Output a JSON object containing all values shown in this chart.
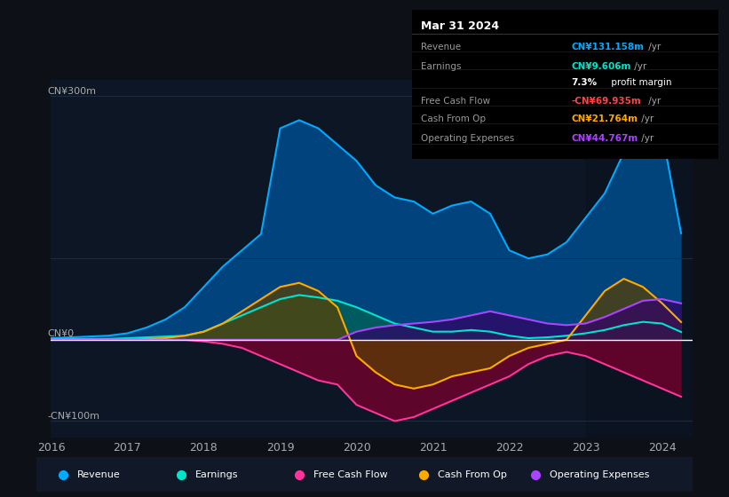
{
  "bg_color": "#0d1117",
  "plot_bg_color": "#0d1624",
  "grid_color": "#1e2d3d",
  "y_label_300": "CN¥300m",
  "y_label_0": "CN¥0",
  "y_label_neg100": "-CN¥100m",
  "x_ticks": [
    2016,
    2017,
    2018,
    2019,
    2020,
    2021,
    2022,
    2023,
    2024
  ],
  "ylim": [
    -120,
    320
  ],
  "series": {
    "Revenue": {
      "color": "#00aaff",
      "fill_color": "#004c8c",
      "fill_alpha": 0.85
    },
    "Earnings": {
      "color": "#00e5cc",
      "fill_color": "#006655",
      "fill_alpha": 0.7
    },
    "Free Cash Flow": {
      "color": "#ff3399",
      "fill_color": "#7a0030",
      "fill_alpha": 0.75
    },
    "Cash From Op": {
      "color": "#ffaa00",
      "fill_color": "#5c4000",
      "fill_alpha": 0.7
    },
    "Operating Expenses": {
      "color": "#aa44ff",
      "fill_color": "#330066",
      "fill_alpha": 0.7
    }
  },
  "revenue_x": [
    2016.0,
    2016.25,
    2016.5,
    2016.75,
    2017.0,
    2017.25,
    2017.5,
    2017.75,
    2018.0,
    2018.25,
    2018.5,
    2018.75,
    2019.0,
    2019.25,
    2019.5,
    2019.75,
    2020.0,
    2020.25,
    2020.5,
    2020.75,
    2021.0,
    2021.25,
    2021.5,
    2021.75,
    2022.0,
    2022.25,
    2022.5,
    2022.75,
    2023.0,
    2023.25,
    2023.5,
    2023.75,
    2024.0,
    2024.25
  ],
  "revenue_y": [
    2,
    3,
    4,
    5,
    8,
    15,
    25,
    40,
    65,
    90,
    110,
    130,
    260,
    270,
    260,
    240,
    220,
    190,
    175,
    170,
    155,
    165,
    170,
    155,
    110,
    100,
    105,
    120,
    150,
    180,
    230,
    265,
    255,
    131
  ],
  "earnings_x": [
    2016.0,
    2016.25,
    2016.5,
    2016.75,
    2017.0,
    2017.25,
    2017.5,
    2017.75,
    2018.0,
    2018.25,
    2018.5,
    2018.75,
    2019.0,
    2019.25,
    2019.5,
    2019.75,
    2020.0,
    2020.25,
    2020.5,
    2020.75,
    2021.0,
    2021.25,
    2021.5,
    2021.75,
    2022.0,
    2022.25,
    2022.5,
    2022.75,
    2023.0,
    2023.25,
    2023.5,
    2023.75,
    2024.0,
    2024.25
  ],
  "earnings_y": [
    1,
    1,
    1,
    1,
    2,
    3,
    4,
    5,
    10,
    20,
    30,
    40,
    50,
    55,
    52,
    48,
    40,
    30,
    20,
    15,
    10,
    10,
    12,
    10,
    5,
    2,
    3,
    5,
    8,
    12,
    18,
    22,
    20,
    9.6
  ],
  "cashflow_x": [
    2016.0,
    2016.25,
    2016.5,
    2016.75,
    2017.0,
    2017.25,
    2017.5,
    2017.75,
    2018.0,
    2018.25,
    2018.5,
    2018.75,
    2019.0,
    2019.25,
    2019.5,
    2019.75,
    2020.0,
    2020.25,
    2020.5,
    2020.75,
    2021.0,
    2021.25,
    2021.5,
    2021.75,
    2022.0,
    2022.25,
    2022.5,
    2022.75,
    2023.0,
    2023.25,
    2023.5,
    2023.75,
    2024.0,
    2024.25
  ],
  "cashflow_y": [
    0,
    0,
    0,
    0,
    0,
    0,
    0,
    0,
    -2,
    -5,
    -10,
    -20,
    -30,
    -40,
    -50,
    -55,
    -80,
    -90,
    -100,
    -95,
    -85,
    -75,
    -65,
    -55,
    -45,
    -30,
    -20,
    -15,
    -20,
    -30,
    -40,
    -50,
    -60,
    -70
  ],
  "cashop_x": [
    2016.0,
    2016.25,
    2016.5,
    2016.75,
    2017.0,
    2017.25,
    2017.5,
    2017.75,
    2018.0,
    2018.25,
    2018.5,
    2018.75,
    2019.0,
    2019.25,
    2019.5,
    2019.75,
    2020.0,
    2020.25,
    2020.5,
    2020.75,
    2021.0,
    2021.25,
    2021.5,
    2021.75,
    2022.0,
    2022.25,
    2022.5,
    2022.75,
    2023.0,
    2023.25,
    2023.5,
    2023.75,
    2024.0,
    2024.25
  ],
  "cashop_y": [
    0,
    0,
    0,
    0,
    0,
    1,
    2,
    5,
    10,
    20,
    35,
    50,
    65,
    70,
    60,
    40,
    -20,
    -40,
    -55,
    -60,
    -55,
    -45,
    -40,
    -35,
    -20,
    -10,
    -5,
    0,
    30,
    60,
    75,
    65,
    45,
    21.8
  ],
  "opex_x": [
    2016.0,
    2016.25,
    2016.5,
    2016.75,
    2017.0,
    2017.25,
    2017.5,
    2017.75,
    2018.0,
    2018.25,
    2018.5,
    2018.75,
    2019.0,
    2019.25,
    2019.5,
    2019.75,
    2020.0,
    2020.25,
    2020.5,
    2020.75,
    2021.0,
    2021.25,
    2021.5,
    2021.75,
    2022.0,
    2022.25,
    2022.5,
    2022.75,
    2023.0,
    2023.25,
    2023.5,
    2023.75,
    2024.0,
    2024.25
  ],
  "opex_y": [
    0,
    0,
    0,
    0,
    0,
    0,
    0,
    0,
    0,
    0,
    0,
    0,
    0,
    0,
    0,
    0,
    10,
    15,
    18,
    20,
    22,
    25,
    30,
    35,
    30,
    25,
    20,
    18,
    20,
    28,
    38,
    48,
    50,
    44.8
  ],
  "legend_items": [
    {
      "label": "Revenue",
      "color": "#00aaff"
    },
    {
      "label": "Earnings",
      "color": "#00e5cc"
    },
    {
      "label": "Free Cash Flow",
      "color": "#ff3399"
    },
    {
      "label": "Cash From Op",
      "color": "#ffaa00"
    },
    {
      "label": "Operating Expenses",
      "color": "#aa44ff"
    }
  ],
  "info_box": {
    "date": "Mar 31 2024",
    "revenue_val": "CN¥131.158m",
    "earnings_val": "CN¥9.606m",
    "margin": "7.3%",
    "fcf_val": "-CN¥69.935m",
    "cashop_val": "CN¥21.764m",
    "opex_val": "CN¥44.767m",
    "revenue_color": "#00aaff",
    "earnings_color": "#00e5cc",
    "fcf_color": "#ff4444",
    "cashop_color": "#ffaa00",
    "opex_color": "#aa44ff"
  }
}
